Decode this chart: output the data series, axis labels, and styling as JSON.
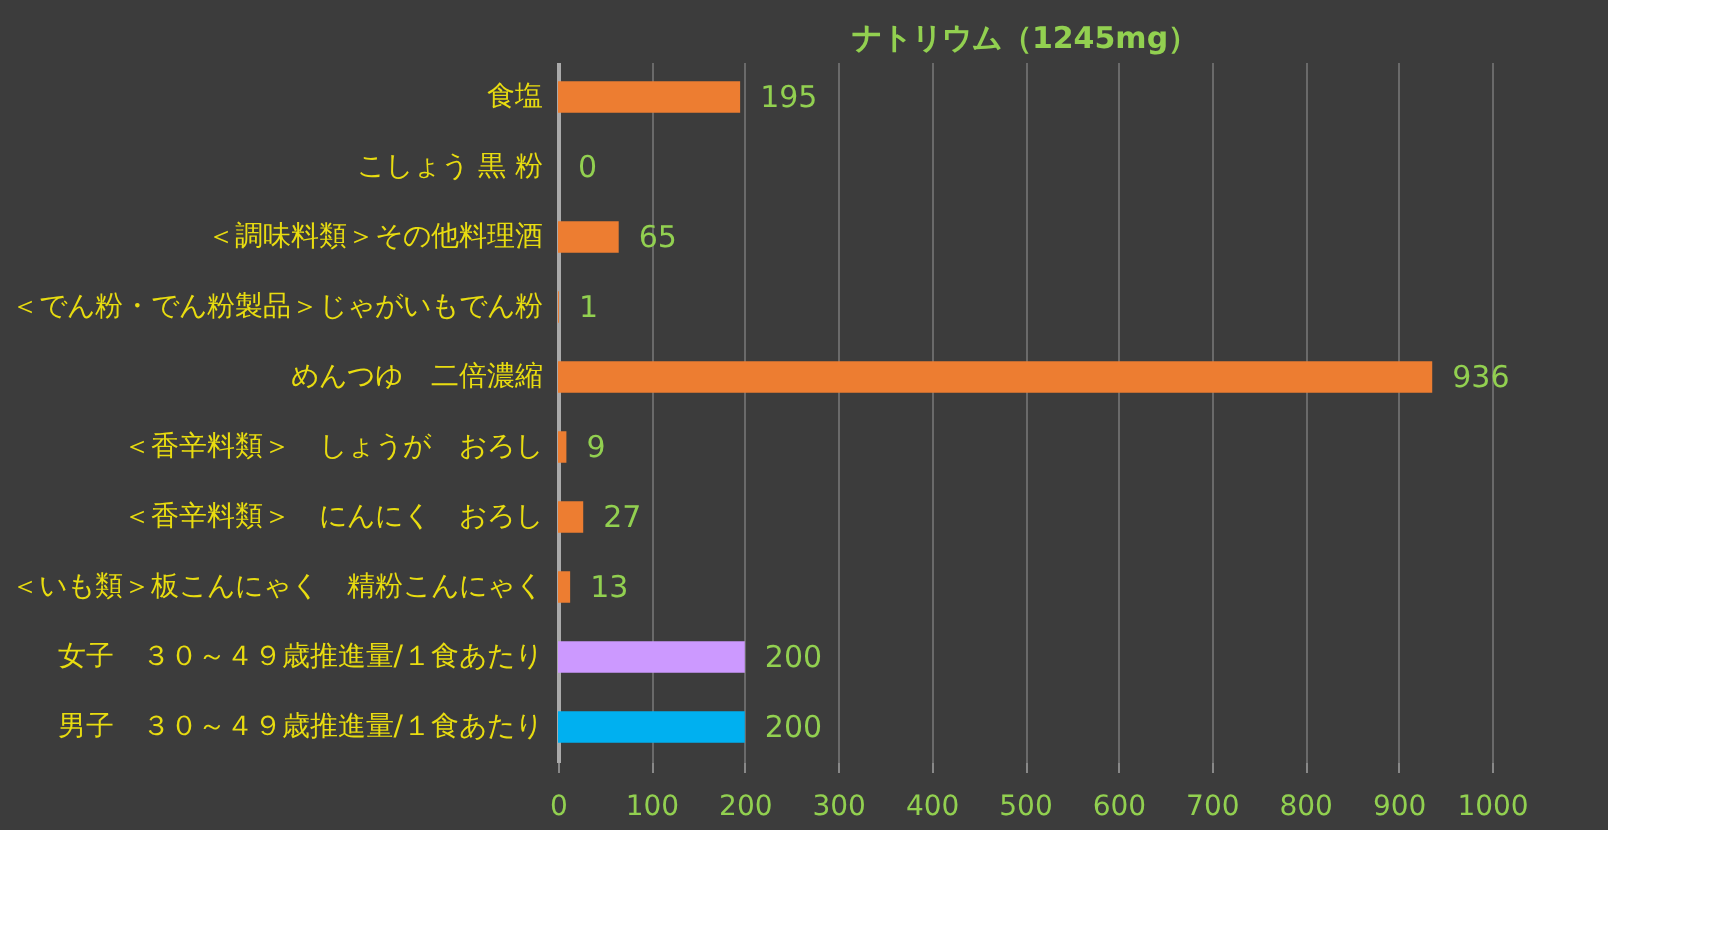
{
  "chart_data": {
    "type": "bar",
    "orientation": "horizontal",
    "title": "ナトリウム（1245mg）",
    "categories": [
      "食塩",
      "こしょう 黒 粉",
      "＜調味料類＞その他料理酒",
      "＜でん粉・でん粉製品＞じゃがいもでん粉",
      "めんつゆ　二倍濃縮",
      "＜香辛料類＞　しょうが　おろし",
      "＜香辛料類＞　にんにく　おろし",
      "＜いも類＞板こんにゃく　精粉こんにゃく",
      "女子　３０～４９歳推進量/１食あたり",
      "男子　３０～４９歳推進量/１食あたり"
    ],
    "values": [
      195,
      0,
      65,
      1,
      936,
      9,
      27,
      13,
      200,
      200
    ],
    "colors": [
      "#ed7d31",
      "#ed7d31",
      "#ed7d31",
      "#ed7d31",
      "#ed7d31",
      "#ed7d31",
      "#ed7d31",
      "#ed7d31",
      "#cc99ff",
      "#00b0f0"
    ],
    "xlim": [
      0,
      1000
    ],
    "xticks": [
      0,
      100,
      200,
      300,
      400,
      500,
      600,
      700,
      800,
      900,
      1000
    ],
    "grid": "x",
    "data_labels": true
  }
}
